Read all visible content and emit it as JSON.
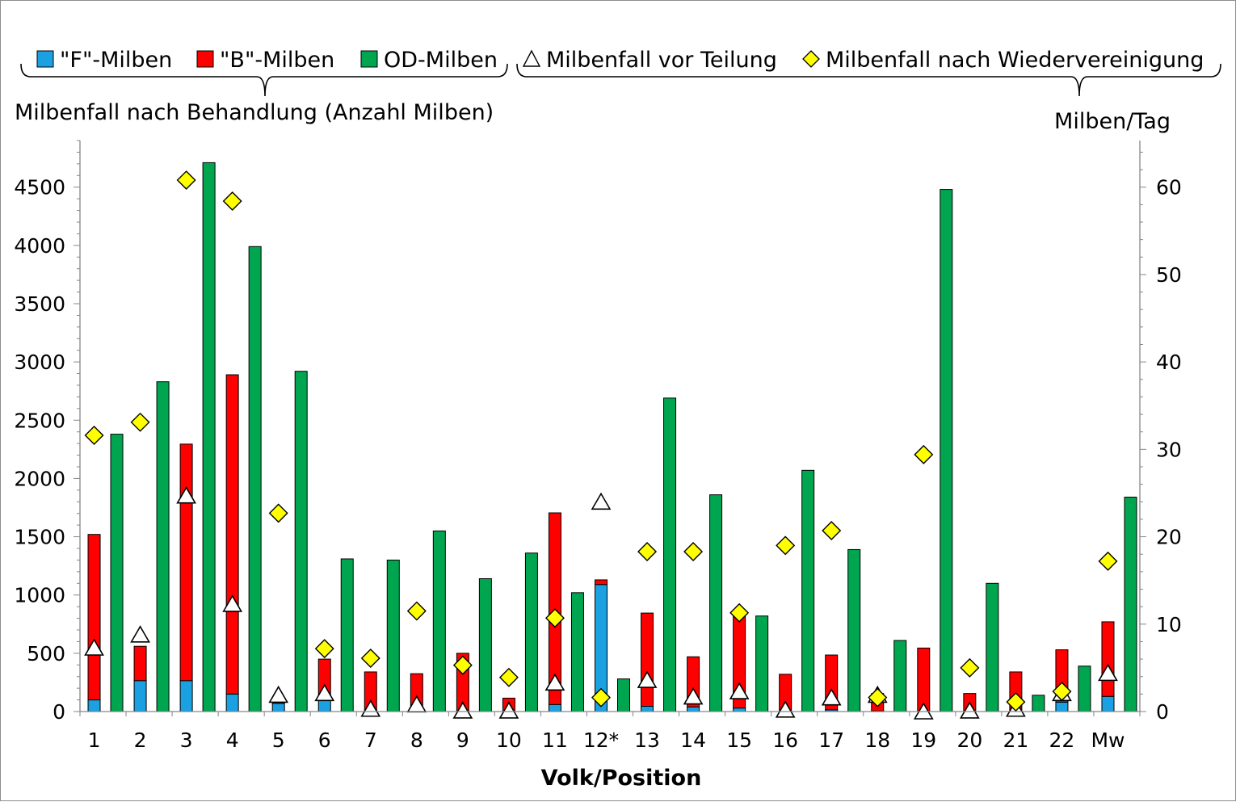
{
  "chart_data": {
    "type": "bar",
    "xlabel": "Volk/Position",
    "ylabel": "Milbenfall nach Behandlung (Anzahl Milben)",
    "y2label": "Milben/Tag",
    "ylim": [
      0,
      4900
    ],
    "y2lim": [
      0,
      65.333
    ],
    "yticks": [
      0,
      500,
      1000,
      1500,
      2000,
      2500,
      3000,
      3500,
      4000,
      4500
    ],
    "y2ticks": [
      0,
      10,
      20,
      30,
      40,
      50,
      60
    ],
    "categories": [
      "1",
      "2",
      "3",
      "4",
      "5",
      "6",
      "7",
      "8",
      "9",
      "10",
      "11",
      "12*",
      "13",
      "14",
      "15",
      "16",
      "17",
      "18",
      "19",
      "20",
      "21",
      "22",
      "Mw"
    ],
    "colors": {
      "F": "#1ba1e2",
      "B": "#ff0000",
      "OD": "#00a550",
      "triangle": "#ffffff",
      "diamond": "#ffff00"
    },
    "series": [
      {
        "name": "\"F\"-Milben",
        "axis": "left",
        "values": [
          100,
          265,
          265,
          150,
          70,
          95,
          10,
          5,
          5,
          0,
          60,
          1090,
          45,
          40,
          30,
          0,
          15,
          5,
          0,
          0,
          0,
          80,
          130
        ]
      },
      {
        "name": "\"B\"-Milben",
        "axis": "left",
        "values": [
          1420,
          295,
          2030,
          2740,
          10,
          355,
          330,
          320,
          495,
          115,
          1645,
          40,
          800,
          430,
          805,
          320,
          470,
          150,
          545,
          155,
          340,
          450,
          640
        ]
      },
      {
        "name": "OD-Milben",
        "axis": "left",
        "values": [
          2380,
          2830,
          4710,
          3990,
          2920,
          1310,
          1300,
          1550,
          1140,
          1360,
          1020,
          280,
          2690,
          1860,
          820,
          2070,
          1390,
          610,
          4480,
          1100,
          140,
          390,
          1840
        ]
      },
      {
        "name": "Milbenfall vor Teilung",
        "axis": "right",
        "values": [
          7.3,
          8.8,
          24.7,
          12.3,
          1.9,
          2.1,
          0.3,
          0.8,
          0.1,
          0.1,
          3.3,
          24,
          3.6,
          1.7,
          2.3,
          0.2,
          1.6,
          1.9,
          0,
          0.1,
          0.3,
          2.1,
          4.4
        ]
      },
      {
        "name": "Milbenfall nach Wiedervereinigung",
        "axis": "right",
        "values": [
          31.6,
          33.1,
          60.8,
          58.4,
          22.7,
          7.2,
          6.1,
          11.5,
          5.3,
          3.9,
          10.7,
          1.6,
          18.3,
          18.3,
          11.3,
          19,
          20.7,
          1.6,
          29.4,
          5,
          1.1,
          2.3,
          17.2
        ]
      }
    ],
    "legend": {
      "placement": "top",
      "left_group_label": "Milbenfall nach Behandlung (Anzahl Milben)",
      "right_group_label": "Milben/Tag"
    },
    "grid": false
  }
}
